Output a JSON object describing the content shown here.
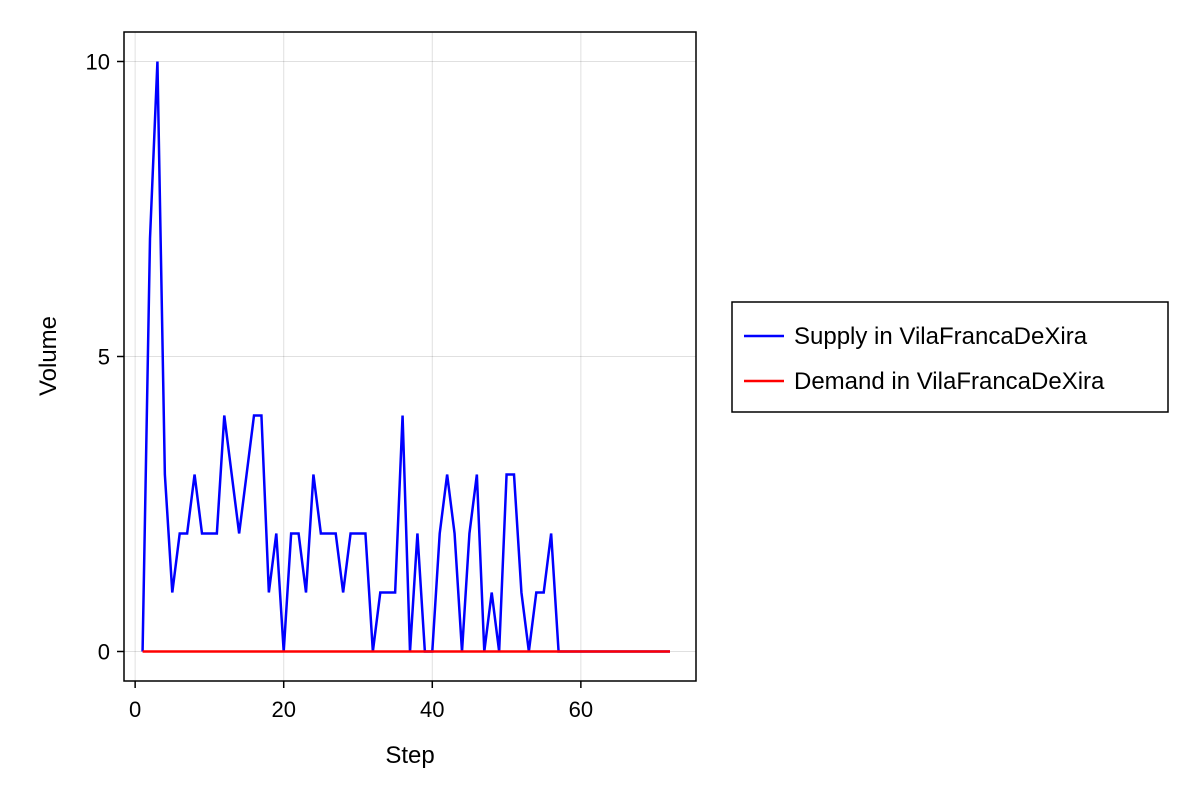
{
  "chart_data": {
    "type": "line",
    "title": "",
    "xlabel": "Step",
    "ylabel": "Volume",
    "xlim": [
      -1.5,
      75.5
    ],
    "ylim": [
      -0.5,
      10.5
    ],
    "xticks": [
      0,
      20,
      40,
      60
    ],
    "yticks": [
      0,
      5,
      10
    ],
    "grid": true,
    "legend_position": "right",
    "series": [
      {
        "name": "Supply in VilaFrancaDeXira",
        "color": "#0000ff",
        "x": [
          1,
          2,
          3,
          4,
          5,
          6,
          7,
          8,
          9,
          10,
          11,
          12,
          13,
          14,
          15,
          16,
          17,
          18,
          19,
          20,
          21,
          22,
          23,
          24,
          25,
          26,
          27,
          28,
          29,
          30,
          31,
          32,
          33,
          34,
          35,
          36,
          37,
          38,
          39,
          40,
          41,
          42,
          43,
          44,
          45,
          46,
          47,
          48,
          49,
          50,
          51,
          52,
          53,
          54,
          55,
          56,
          57,
          58,
          59,
          60,
          61,
          62,
          63,
          64,
          65,
          66,
          67,
          68,
          69,
          70,
          71,
          72
        ],
        "values": [
          0,
          7,
          10,
          3,
          1,
          2,
          2,
          3,
          2,
          2,
          2,
          4,
          3,
          2,
          3,
          4,
          4,
          1,
          2,
          0,
          2,
          2,
          1,
          3,
          2,
          2,
          2,
          1,
          2,
          2,
          2,
          0,
          1,
          1,
          1,
          4,
          0,
          2,
          0,
          0,
          2,
          3,
          2,
          0,
          2,
          3,
          0,
          1,
          0,
          3,
          3,
          1,
          0,
          1,
          1,
          2,
          0,
          0,
          0,
          0,
          0,
          0,
          0,
          0,
          0,
          0,
          0,
          0,
          0,
          0,
          0,
          0
        ]
      },
      {
        "name": "Demand in VilaFrancaDeXira",
        "color": "#ff0000",
        "x": [
          1,
          2,
          3,
          4,
          5,
          6,
          7,
          8,
          9,
          10,
          11,
          12,
          13,
          14,
          15,
          16,
          17,
          18,
          19,
          20,
          21,
          22,
          23,
          24,
          25,
          26,
          27,
          28,
          29,
          30,
          31,
          32,
          33,
          34,
          35,
          36,
          37,
          38,
          39,
          40,
          41,
          42,
          43,
          44,
          45,
          46,
          47,
          48,
          49,
          50,
          51,
          52,
          53,
          54,
          55,
          56,
          57,
          58,
          59,
          60,
          61,
          62,
          63,
          64,
          65,
          66,
          67,
          68,
          69,
          70,
          71,
          72
        ],
        "values": [
          0,
          0,
          0,
          0,
          0,
          0,
          0,
          0,
          0,
          0,
          0,
          0,
          0,
          0,
          0,
          0,
          0,
          0,
          0,
          0,
          0,
          0,
          0,
          0,
          0,
          0,
          0,
          0,
          0,
          0,
          0,
          0,
          0,
          0,
          0,
          0,
          0,
          0,
          0,
          0,
          0,
          0,
          0,
          0,
          0,
          0,
          0,
          0,
          0,
          0,
          0,
          0,
          0,
          0,
          0,
          0,
          0,
          0,
          0,
          0,
          0,
          0,
          0,
          0,
          0,
          0,
          0,
          0,
          0,
          0,
          0,
          0
        ]
      }
    ]
  }
}
